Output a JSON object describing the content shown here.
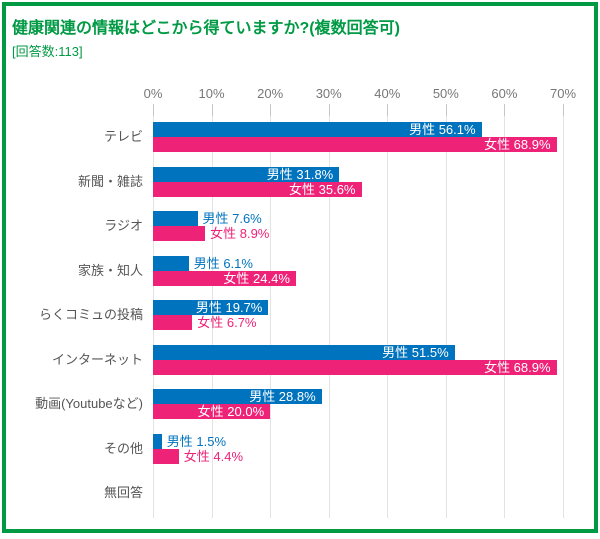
{
  "header": {
    "title": "健康関連の情報はどこから得ていますか?(複数回答可)",
    "respondents": "[回答数:113]"
  },
  "colors": {
    "frame_green": "#009944",
    "male_blue": "#0073BE",
    "female_pink": "#EE2277",
    "gridline": "#e3e3e3",
    "tick": "#c6c6c6",
    "axis_label_gray": "#777777",
    "category_label_gray": "#555555",
    "value_label_inside": "#ffffff"
  },
  "chart_data": {
    "type": "bar",
    "orientation": "horizontal",
    "title": "健康関連の情報はどこから得ていますか?(複数回答可)",
    "respondent_count": 113,
    "categories": [
      "テレビ",
      "新聞・雑誌",
      "ラジオ",
      "家族・知人",
      "らくコミュの投稿",
      "インターネット",
      "動画(Youtubeなど)",
      "その他",
      "無回答"
    ],
    "series": [
      {
        "name": "男性",
        "color": "#0073BE",
        "values": [
          56.1,
          31.8,
          7.6,
          6.1,
          19.7,
          51.5,
          28.8,
          1.5,
          null
        ]
      },
      {
        "name": "女性",
        "color": "#EE2277",
        "values": [
          68.9,
          35.6,
          8.9,
          24.4,
          6.7,
          68.9,
          20.0,
          4.4,
          null
        ]
      }
    ],
    "x_axis": {
      "min": 0,
      "max": 70,
      "tick_step": 10,
      "tick_labels": [
        "0%",
        "10%",
        "20%",
        "30%",
        "40%",
        "50%",
        "60%",
        "70%"
      ],
      "position": "top"
    },
    "value_label_format": "{series} {value}%",
    "grid": true,
    "legend": "none"
  }
}
